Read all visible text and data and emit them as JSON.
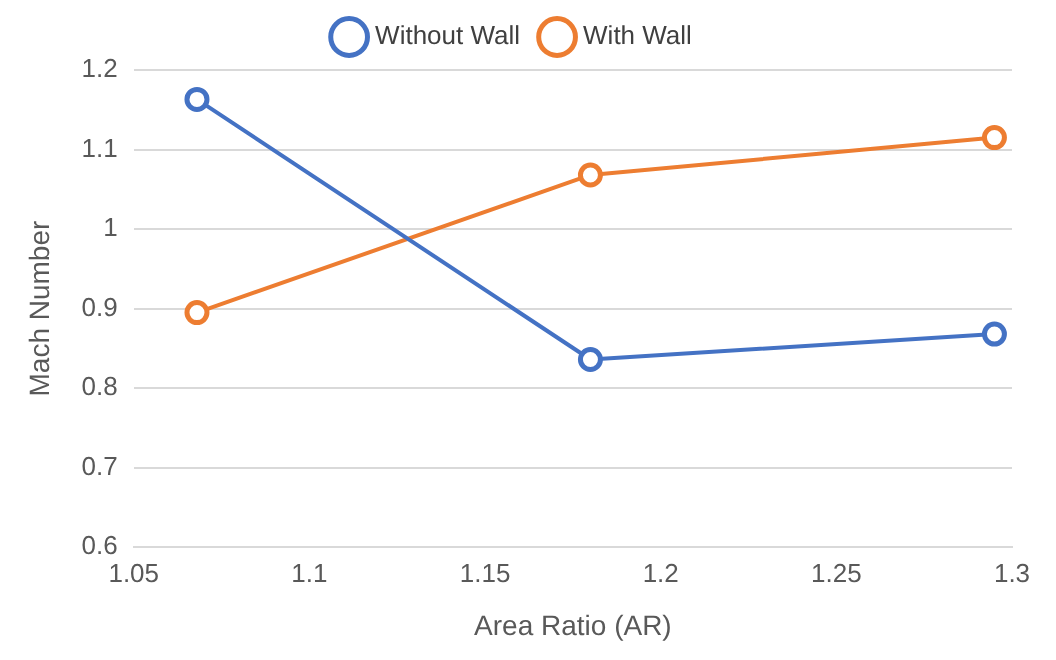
{
  "chart_data": {
    "type": "line",
    "xlabel": "Area Ratio (AR)",
    "ylabel": "Mach Number",
    "x": [
      1.068,
      1.18,
      1.295
    ],
    "series": [
      {
        "name": "Without Wall",
        "color": "#4472c4",
        "values": [
          1.163,
          0.836,
          0.868
        ]
      },
      {
        "name": "With Wall",
        "color": "#ed7d31",
        "values": [
          0.895,
          1.068,
          1.115
        ]
      }
    ],
    "xlim": [
      1.05,
      1.3
    ],
    "xticks": [
      1.05,
      1.1,
      1.15,
      1.2,
      1.25,
      1.3
    ],
    "ylim": [
      0.6,
      1.2
    ],
    "yticks": [
      0.6,
      0.7,
      0.8,
      0.9,
      1,
      1.1,
      1.2
    ],
    "grid": "y",
    "legend": "top",
    "marker": "circle",
    "line_style": "solid"
  }
}
